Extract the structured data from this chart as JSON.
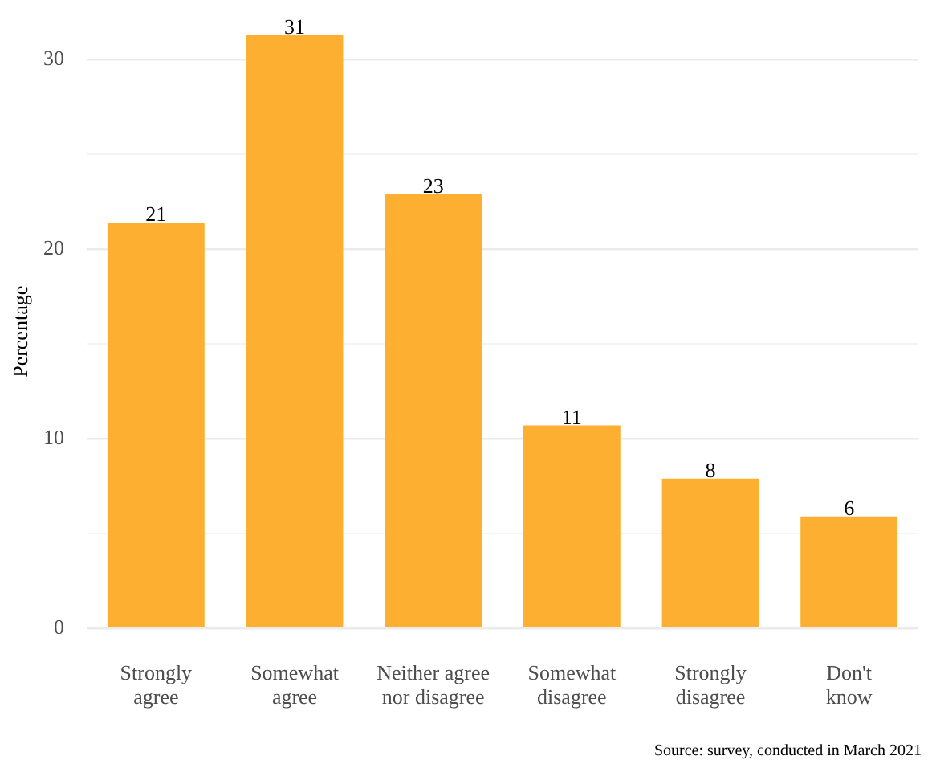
{
  "chart_data": {
    "type": "bar",
    "ylabel": "Percentage",
    "categories": [
      "Strongly\nagree",
      "Somewhat\nagree",
      "Neither agree\nnor disagree",
      "Somewhat\ndisagree",
      "Strongly\ndisagree",
      "Don't\nknow"
    ],
    "values": [
      21.4,
      31.3,
      22.9,
      10.7,
      7.9,
      5.9
    ],
    "value_labels": [
      "21",
      "31",
      "23",
      "11",
      "8",
      "6"
    ],
    "color": "#fcaf30",
    "ylim": [
      0,
      31.3
    ],
    "yticks": [
      0,
      {
        "value": 5,
        "label": null
      },
      10,
      {
        "value": 15,
        "label": null
      },
      20,
      {
        "value": 25,
        "label": null
      },
      30
    ],
    "grid": "y",
    "legend": false,
    "annotations": [
      "Source: survey, conducted in March 2021"
    ]
  }
}
